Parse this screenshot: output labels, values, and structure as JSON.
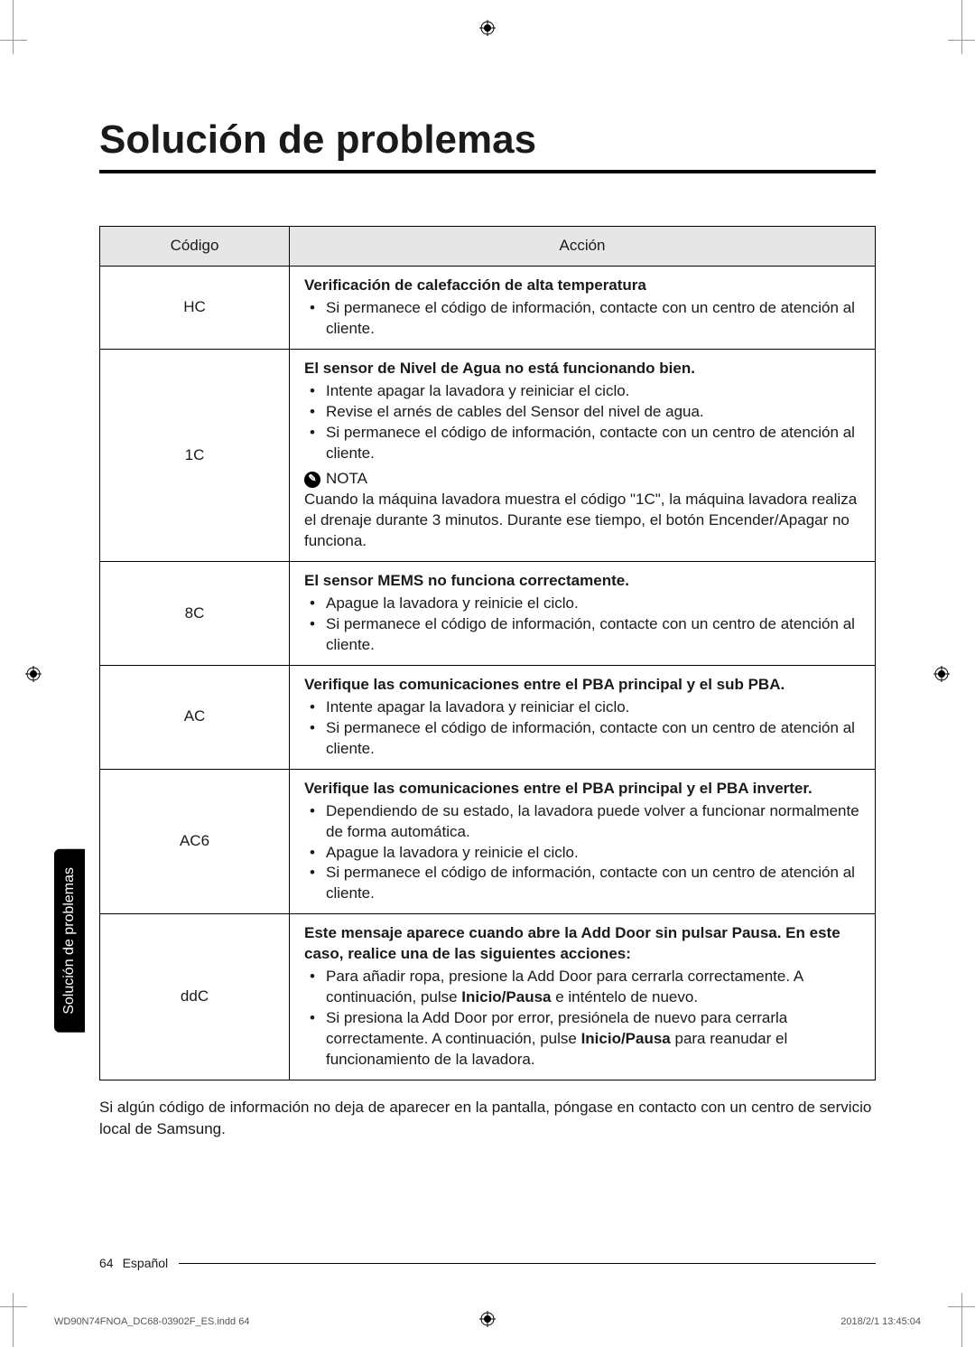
{
  "title": "Solución de problemas",
  "side_tab": "Solución de problemas",
  "table": {
    "headers": {
      "code": "Código",
      "action": "Acción"
    },
    "rows": [
      {
        "code": "HC",
        "bold": "Verificación de calefacción de alta temperatura",
        "bullets": [
          "Si permanece el código de información, contacte con un centro de atención al cliente."
        ]
      },
      {
        "code": "1C",
        "bold": "El sensor de Nivel de Agua no está funcionando bien.",
        "bullets": [
          "Intente apagar la lavadora y reiniciar el ciclo.",
          "Revise el arnés de cables del Sensor del nivel de agua.",
          "Si permanece el código de información, contacte con un centro de atención al cliente."
        ],
        "nota_label": "NOTA",
        "nota_text": "Cuando la máquina lavadora muestra el código \"1C\", la máquina lavadora realiza el drenaje durante 3 minutos. Durante ese tiempo, el botón Encender/Apagar no funciona."
      },
      {
        "code": "8C",
        "bold": "El sensor MEMS no funciona correctamente.",
        "bullets": [
          "Apague la lavadora y reinicie el ciclo.",
          "Si permanece el código de información, contacte con un centro de atención al cliente."
        ]
      },
      {
        "code": "AC",
        "bold": "Verifique las comunicaciones entre el PBA principal y el sub PBA.",
        "bullets": [
          "Intente apagar la lavadora y reiniciar el ciclo.",
          "Si permanece el código de información, contacte con un centro de atención al cliente."
        ]
      },
      {
        "code": "AC6",
        "bold": "Verifique las comunicaciones entre el PBA principal y el PBA inverter.",
        "bullets": [
          "Dependiendo de su estado, la lavadora puede volver a funcionar normalmente de forma automática.",
          "Apague la lavadora y reinicie el ciclo.",
          "Si permanece el código de información, contacte con un centro de atención al cliente."
        ]
      },
      {
        "code": "ddC",
        "bold": "Este mensaje aparece cuando abre la Add Door sin pulsar Pausa. En este caso, realice una de las siguientes acciones:",
        "bullets_html": [
          "Para añadir ropa, presione la Add Door para cerrarla correctamente. A continuación, pulse <b>Inicio/Pausa</b> e inténtelo de nuevo.",
          "Si presiona la Add Door por error, presiónela de nuevo para cerrarla correctamente. A continuación, pulse <b>Inicio/Pausa</b> para reanudar el funcionamiento de la lavadora."
        ]
      }
    ]
  },
  "after_table": "Si algún código de información no deja de aparecer en la pantalla, póngase en contacto con un centro de servicio local de Samsung.",
  "footer": {
    "page_num": "64",
    "lang": "Español"
  },
  "print_meta": {
    "file": "WD90N74FNOA_DC68-03902F_ES.indd   64",
    "date": "2018/2/1   13:45:04"
  },
  "colors": {
    "header_bg": "#e6e6e6",
    "text": "#1a1a1a",
    "side_bg": "#000000",
    "side_fg": "#ffffff"
  }
}
